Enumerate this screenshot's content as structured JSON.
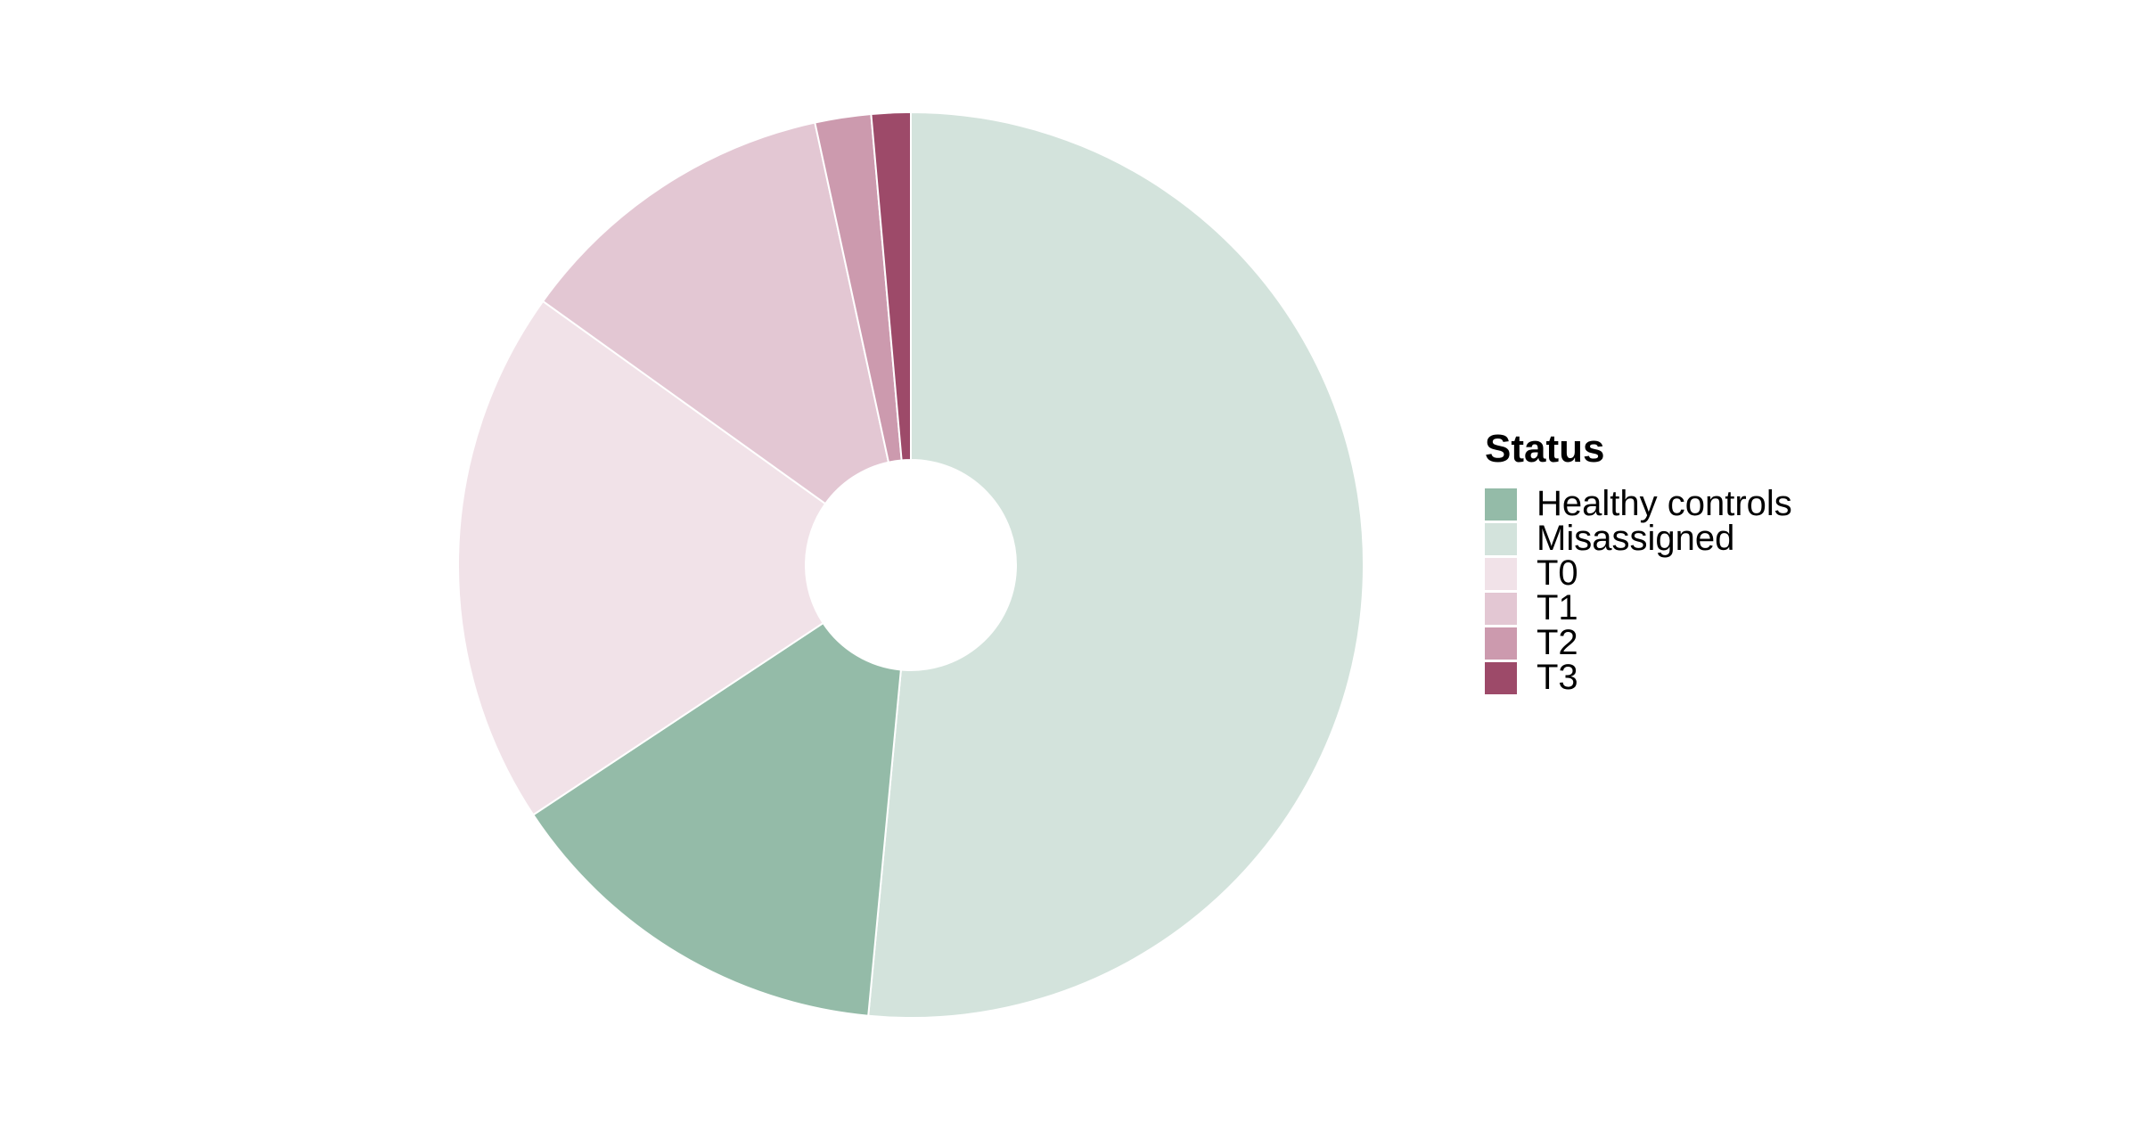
{
  "chart_data": {
    "type": "pie",
    "donut": true,
    "start_angle": "12 o'clock",
    "direction": "clockwise",
    "slices": [
      {
        "label": "Misassigned",
        "value": 51.5,
        "color": "#d3e3dc"
      },
      {
        "label": "Healthy controls",
        "value": 14.2,
        "color": "#94bba8"
      },
      {
        "label": "T0",
        "value": 19.2,
        "color": "#f1e2e8"
      },
      {
        "label": "T1",
        "value": 11.7,
        "color": "#e3c7d3"
      },
      {
        "label": "T2",
        "value": 2.0,
        "color": "#cc9aae"
      },
      {
        "label": "T3",
        "value": 1.4,
        "color": "#9d4a69"
      }
    ],
    "legend": {
      "title": "Status",
      "placement": "right",
      "items": [
        {
          "label": "Healthy controls",
          "color": "#94bba8"
        },
        {
          "label": "Misassigned",
          "color": "#d3e3dc"
        },
        {
          "label": "T0",
          "color": "#f1e2e8"
        },
        {
          "label": "T1",
          "color": "#e3c7d3"
        },
        {
          "label": "T2",
          "color": "#cc9aae"
        },
        {
          "label": "T3",
          "color": "#9d4a69"
        }
      ]
    }
  }
}
